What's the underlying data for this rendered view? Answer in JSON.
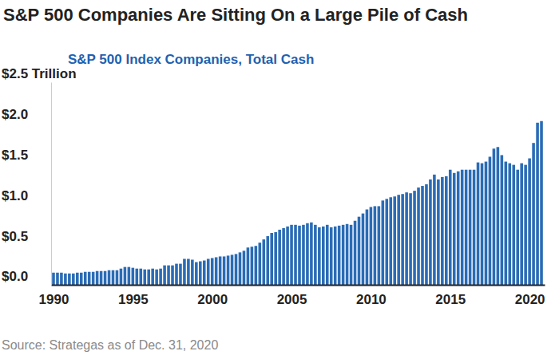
{
  "chart_data": {
    "type": "bar",
    "title": "S&P 500 Companies Are Sitting On a Large Pile of Cash",
    "subtitle": "S&P 500 Index Companies, Total Cash",
    "source": "Source: Strategas as of Dec. 31, 2020",
    "color": "#2b6cb6",
    "grid": false,
    "x": [
      1990,
      1990.25,
      1990.5,
      1990.75,
      1991,
      1991.25,
      1991.5,
      1991.75,
      1992,
      1992.25,
      1992.5,
      1992.75,
      1993,
      1993.25,
      1993.5,
      1993.75,
      1994,
      1994.25,
      1994.5,
      1994.75,
      1995,
      1995.25,
      1995.5,
      1995.75,
      1996,
      1996.25,
      1996.5,
      1996.75,
      1997,
      1997.25,
      1997.5,
      1997.75,
      1998,
      1998.25,
      1998.5,
      1998.75,
      1999,
      1999.25,
      1999.5,
      1999.75,
      2000,
      2000.25,
      2000.5,
      2000.75,
      2001,
      2001.25,
      2001.5,
      2001.75,
      2002,
      2002.25,
      2002.5,
      2002.75,
      2003,
      2003.25,
      2003.5,
      2003.75,
      2004,
      2004.25,
      2004.5,
      2004.75,
      2005,
      2005.25,
      2005.5,
      2005.75,
      2006,
      2006.25,
      2006.5,
      2006.75,
      2007,
      2007.25,
      2007.5,
      2007.75,
      2008,
      2008.25,
      2008.5,
      2008.75,
      2009,
      2009.25,
      2009.5,
      2009.75,
      2010,
      2010.25,
      2010.5,
      2010.75,
      2011,
      2011.25,
      2011.5,
      2011.75,
      2012,
      2012.25,
      2012.5,
      2012.75,
      2013,
      2013.25,
      2013.5,
      2013.75,
      2014,
      2014.25,
      2014.5,
      2014.75,
      2015,
      2015.25,
      2015.5,
      2015.75,
      2016,
      2016.25,
      2016.5,
      2016.75,
      2017,
      2017.25,
      2017.5,
      2017.75,
      2018,
      2018.25,
      2018.5,
      2018.75,
      2019,
      2019.25,
      2019.5,
      2019.75,
      2020,
      2020.25,
      2020.5,
      2020.75
    ],
    "values": [
      0.15,
      0.15,
      0.15,
      0.14,
      0.14,
      0.14,
      0.15,
      0.15,
      0.16,
      0.16,
      0.16,
      0.17,
      0.17,
      0.17,
      0.18,
      0.18,
      0.18,
      0.2,
      0.22,
      0.22,
      0.21,
      0.2,
      0.2,
      0.19,
      0.19,
      0.2,
      0.19,
      0.2,
      0.24,
      0.24,
      0.24,
      0.26,
      0.26,
      0.32,
      0.32,
      0.31,
      0.28,
      0.29,
      0.3,
      0.32,
      0.33,
      0.34,
      0.35,
      0.35,
      0.36,
      0.37,
      0.38,
      0.4,
      0.42,
      0.46,
      0.47,
      0.48,
      0.52,
      0.56,
      0.6,
      0.64,
      0.65,
      0.68,
      0.7,
      0.72,
      0.74,
      0.74,
      0.73,
      0.74,
      0.76,
      0.77,
      0.74,
      0.71,
      0.72,
      0.74,
      0.71,
      0.72,
      0.73,
      0.74,
      0.75,
      0.74,
      0.79,
      0.84,
      0.88,
      0.93,
      0.96,
      0.97,
      0.97,
      1.04,
      1.06,
      1.08,
      1.09,
      1.11,
      1.12,
      1.14,
      1.13,
      1.16,
      1.2,
      1.22,
      1.24,
      1.3,
      1.36,
      1.3,
      1.33,
      1.34,
      1.42,
      1.38,
      1.4,
      1.42,
      1.42,
      1.42,
      1.42,
      1.51,
      1.5,
      1.52,
      1.58,
      1.68,
      1.7,
      1.6,
      1.52,
      1.5,
      1.48,
      1.42,
      1.5,
      1.48,
      1.56,
      1.75,
      2.0,
      2.02
    ],
    "xlim": [
      1989.85,
      2020.95
    ],
    "xticks": [
      1990,
      1995,
      2000,
      2005,
      2010,
      2015,
      2020
    ],
    "ylim": [
      0,
      2.5
    ],
    "yticks": [
      {
        "value": 0,
        "label": "$0.0"
      },
      {
        "value": 0.5,
        "label": "$0.5"
      },
      {
        "value": 1,
        "label": "$1.0"
      },
      {
        "value": 1.5,
        "label": "$1.5"
      },
      {
        "value": 2,
        "label": "$2.0"
      },
      {
        "value": 2.5,
        "label": "$2.5 Trillion"
      }
    ]
  }
}
